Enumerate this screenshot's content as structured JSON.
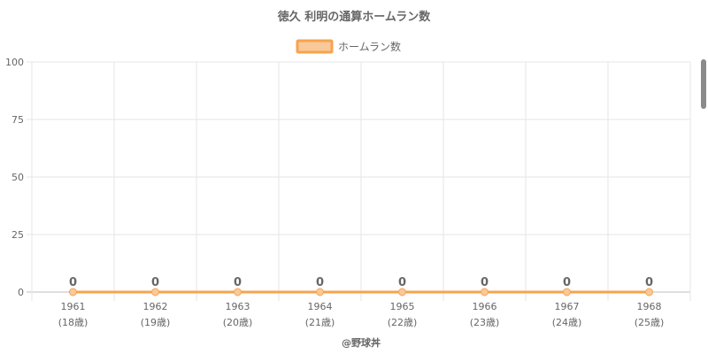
{
  "chart_data": {
    "type": "line",
    "title": "徳久 利明の通算ホームラン数",
    "legend": {
      "label": "ホームラン数",
      "placement": "top-center"
    },
    "categories": [
      "1961",
      "1962",
      "1963",
      "1964",
      "1965",
      "1966",
      "1967",
      "1968"
    ],
    "ages": [
      "(18歳)",
      "(19歳)",
      "(20歳)",
      "(21歳)",
      "(22歳)",
      "(23歳)",
      "(24歳)",
      "(25歳)"
    ],
    "series": [
      {
        "name": "ホームラン数",
        "values": [
          0,
          0,
          0,
          0,
          0,
          0,
          0,
          0
        ]
      }
    ],
    "ylim": [
      0,
      100
    ],
    "yticks": [
      0,
      25,
      50,
      75,
      100
    ],
    "grid": true,
    "colors": {
      "line": "#f7a34d",
      "fill": "#f8c99a",
      "grid": "#e6e6e6",
      "text": "#666666"
    }
  },
  "footer": "@野球丼"
}
